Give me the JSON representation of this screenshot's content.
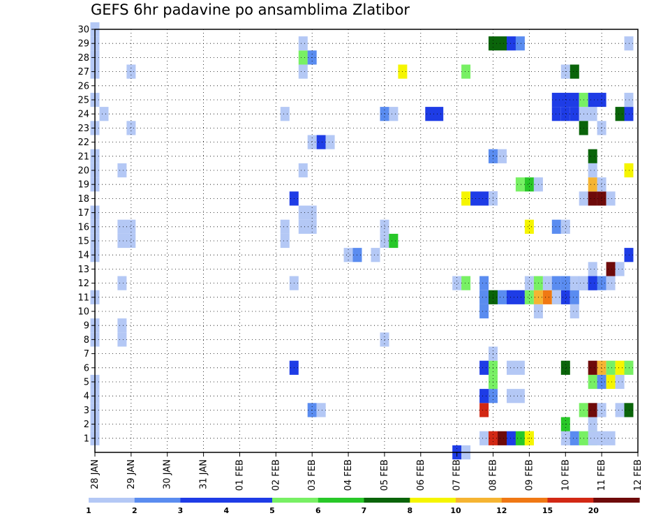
{
  "chart_data": {
    "type": "heatmap",
    "title": "GEFS 6hr padavine po ansamblima Zlatibor",
    "x_tick_labels": [
      "28 JAN",
      "29 JAN",
      "30 JAN",
      "31 JAN",
      "01 FEB",
      "02 FEB",
      "03 FEB",
      "04 FEB",
      "05 FEB",
      "06 FEB",
      "07 FEB",
      "08 FEB",
      "09 FEB",
      "10 FEB",
      "11 FEB",
      "12 FEB"
    ],
    "y_tick_labels": [
      "1",
      "2",
      "3",
      "4",
      "5",
      "6",
      "7",
      "8",
      "9",
      "10",
      "11",
      "12",
      "13",
      "14",
      "15",
      "16",
      "17",
      "18",
      "19",
      "20",
      "21",
      "22",
      "23",
      "24",
      "25",
      "26",
      "27",
      "28",
      "29",
      "30"
    ],
    "x_range_days": [
      0,
      15
    ],
    "y_range": [
      0,
      30
    ],
    "grid": true,
    "colorbar": {
      "tick_labels": [
        "1",
        "2",
        "3",
        "4",
        "5",
        "6",
        "7",
        "8",
        "10",
        "12",
        "15",
        "20"
      ],
      "colors": [
        "#b4c8f5",
        "#5a8cf0",
        "#1e3ce6",
        "#1e3ce6",
        "#78f064",
        "#28c828",
        "#0a640a",
        "#f5f500",
        "#f5b432",
        "#f07814",
        "#d22814",
        "#6e0a0a"
      ]
    },
    "cells": [
      [
        0,
        1,
        1,
        1
      ],
      [
        0,
        2,
        1,
        1
      ],
      [
        0,
        3,
        1,
        1
      ],
      [
        0,
        4,
        1,
        1
      ],
      [
        0,
        5,
        1,
        1
      ],
      [
        0,
        8,
        1,
        1
      ],
      [
        0,
        9,
        1,
        1
      ],
      [
        0,
        11,
        1,
        1
      ],
      [
        0,
        14,
        1,
        1
      ],
      [
        0,
        15,
        1,
        1
      ],
      [
        0,
        16,
        1,
        1
      ],
      [
        0,
        17,
        1,
        1
      ],
      [
        0,
        19,
        1,
        1
      ],
      [
        0,
        20,
        1,
        1
      ],
      [
        0,
        21,
        1,
        1
      ],
      [
        0,
        23,
        1,
        1
      ],
      [
        0,
        25,
        1,
        1
      ],
      [
        0,
        27,
        1,
        1
      ],
      [
        0,
        28,
        1,
        1
      ],
      [
        0,
        29,
        1,
        1
      ],
      [
        0,
        30,
        1,
        1
      ],
      [
        0.25,
        24,
        1,
        1
      ],
      [
        0.75,
        8,
        1,
        1
      ],
      [
        0.75,
        9,
        1,
        1
      ],
      [
        0.75,
        12,
        1,
        1
      ],
      [
        0.75,
        15,
        2,
        1
      ],
      [
        0.75,
        16,
        2,
        1
      ],
      [
        0.75,
        20,
        1,
        1
      ],
      [
        1,
        23,
        1,
        1
      ],
      [
        1,
        27,
        1,
        1
      ],
      [
        5.25,
        15,
        1,
        1
      ],
      [
        5.25,
        16,
        1,
        1
      ],
      [
        5.25,
        24,
        1,
        1
      ],
      [
        5.5,
        6,
        1,
        3
      ],
      [
        5.5,
        12,
        1,
        1
      ],
      [
        5.5,
        18,
        1,
        3
      ],
      [
        5.75,
        16,
        2,
        1
      ],
      [
        5.75,
        17,
        2,
        1
      ],
      [
        5.75,
        20,
        1,
        1
      ],
      [
        5.75,
        27,
        1,
        1
      ],
      [
        5.75,
        28,
        1,
        5
      ],
      [
        5.75,
        29,
        1,
        1
      ],
      [
        6.0,
        28,
        1,
        2
      ],
      [
        6.0,
        22,
        1,
        1
      ],
      [
        6.25,
        22,
        1,
        3
      ],
      [
        6.5,
        22,
        1,
        1
      ],
      [
        6.0,
        3,
        1,
        2
      ],
      [
        6.25,
        3,
        1,
        1
      ],
      [
        7.0,
        14,
        1,
        1
      ],
      [
        7.25,
        14,
        1,
        2
      ],
      [
        7.75,
        14,
        1,
        1
      ],
      [
        8.0,
        8,
        1,
        1
      ],
      [
        8.0,
        15,
        1,
        1
      ],
      [
        8.0,
        16,
        1,
        1
      ],
      [
        8.25,
        15,
        1,
        6
      ],
      [
        8.0,
        24,
        1,
        2
      ],
      [
        8.25,
        24,
        1,
        1
      ],
      [
        8.5,
        27,
        1,
        8
      ],
      [
        9.25,
        24,
        2,
        3
      ],
      [
        10.0,
        0,
        1,
        3
      ],
      [
        10.25,
        0,
        1,
        1
      ],
      [
        10.0,
        12,
        1,
        1
      ],
      [
        10.25,
        12,
        1,
        5
      ],
      [
        10.25,
        27,
        1,
        5
      ],
      [
        10.25,
        18,
        1,
        8
      ],
      [
        10.5,
        18,
        3,
        3
      ],
      [
        11.0,
        18,
        1,
        1
      ],
      [
        10.75,
        1,
        1,
        1
      ],
      [
        11.0,
        1,
        1,
        11
      ],
      [
        11.25,
        1,
        1,
        12
      ],
      [
        11.5,
        1,
        1,
        3
      ],
      [
        11.75,
        1,
        1,
        6
      ],
      [
        12.0,
        1,
        1,
        8
      ],
      [
        10.75,
        3,
        1,
        11
      ],
      [
        11.0,
        4,
        1,
        2
      ],
      [
        11.0,
        5,
        1,
        5
      ],
      [
        11.0,
        6,
        1,
        5
      ],
      [
        11.0,
        7,
        1,
        1
      ],
      [
        10.75,
        4,
        1,
        3
      ],
      [
        10.75,
        6,
        1,
        3
      ],
      [
        10.75,
        11,
        1,
        2
      ],
      [
        10.75,
        10,
        1,
        2
      ],
      [
        10.75,
        12,
        1,
        2
      ],
      [
        11.0,
        11,
        1,
        7
      ],
      [
        11.25,
        11,
        1,
        2
      ],
      [
        11.5,
        11,
        2,
        3
      ],
      [
        11.5,
        4,
        2,
        1
      ],
      [
        11.5,
        6,
        2,
        1
      ],
      [
        12.0,
        11,
        1,
        5
      ],
      [
        12.25,
        11,
        1,
        9
      ],
      [
        12.5,
        11,
        1,
        10
      ],
      [
        12.75,
        11,
        1,
        8
      ],
      [
        13.0,
        11,
        1,
        3
      ],
      [
        13.25,
        11,
        1,
        2
      ],
      [
        12.0,
        12,
        1,
        1
      ],
      [
        12.25,
        12,
        1,
        5
      ],
      [
        12.5,
        12,
        1,
        1
      ],
      [
        12.75,
        12,
        1,
        2
      ],
      [
        13.0,
        12,
        1,
        2
      ],
      [
        13.25,
        12,
        1,
        1
      ],
      [
        13.5,
        12,
        1,
        2
      ],
      [
        13.75,
        12,
        1,
        3
      ],
      [
        14.0,
        12,
        1,
        2
      ],
      [
        14.25,
        12,
        1,
        1
      ],
      [
        11.0,
        29,
        1,
        7
      ],
      [
        11.25,
        29,
        1,
        7
      ],
      [
        11.5,
        29,
        1,
        3
      ],
      [
        11.75,
        29,
        1,
        2
      ],
      [
        11.0,
        21,
        1,
        2
      ],
      [
        11.25,
        21,
        1,
        1
      ],
      [
        11.75,
        19,
        1,
        5
      ],
      [
        12.0,
        19,
        1,
        6
      ],
      [
        12.25,
        19,
        1,
        1
      ],
      [
        12.0,
        16,
        1,
        8
      ],
      [
        12.25,
        10,
        1,
        1
      ],
      [
        12.0,
        1,
        1,
        8
      ],
      [
        12.75,
        24,
        1,
        3
      ],
      [
        13.0,
        24,
        1,
        3
      ],
      [
        13.25,
        24,
        1,
        3
      ],
      [
        12.75,
        25,
        3,
        3
      ],
      [
        12.75,
        16,
        1,
        2
      ],
      [
        13.0,
        16,
        1,
        1
      ],
      [
        12.75,
        11,
        1,
        1
      ],
      [
        13.0,
        27,
        1,
        1
      ],
      [
        13.25,
        27,
        1,
        7
      ],
      [
        13.0,
        12,
        1,
        2
      ],
      [
        13.25,
        10,
        1,
        1
      ],
      [
        13.0,
        1,
        1,
        1
      ],
      [
        13.25,
        1,
        1,
        2
      ],
      [
        13.5,
        1,
        2,
        5
      ],
      [
        13.0,
        2,
        1,
        6
      ],
      [
        13.0,
        6,
        1,
        7
      ],
      [
        13.5,
        24,
        2,
        1
      ],
      [
        13.5,
        25,
        1,
        5
      ],
      [
        13.75,
        25,
        2,
        3
      ],
      [
        13.5,
        23,
        1,
        7
      ],
      [
        13.5,
        3,
        1,
        5
      ],
      [
        13.75,
        3,
        1,
        15
      ],
      [
        14.0,
        3,
        1,
        1
      ],
      [
        13.75,
        2,
        1,
        1
      ],
      [
        13.75,
        1,
        3,
        1
      ],
      [
        13.75,
        5,
        1,
        5
      ],
      [
        14.0,
        5,
        1,
        2
      ],
      [
        14.25,
        5,
        1,
        8
      ],
      [
        14.5,
        5,
        1,
        1
      ],
      [
        13.75,
        6,
        1,
        20
      ],
      [
        14.0,
        6,
        1,
        9
      ],
      [
        14.25,
        6,
        1,
        5
      ],
      [
        14.5,
        6,
        1,
        8
      ],
      [
        14.75,
        6,
        1,
        5
      ],
      [
        13.5,
        18,
        1,
        1
      ],
      [
        13.75,
        18,
        1,
        20
      ],
      [
        14.0,
        18,
        1,
        15
      ],
      [
        14.25,
        18,
        1,
        1
      ],
      [
        13.75,
        19,
        1,
        9
      ],
      [
        14.0,
        19,
        1,
        1
      ],
      [
        13.75,
        21,
        1,
        7
      ],
      [
        13.75,
        20,
        1,
        1
      ],
      [
        14.0,
        23,
        1,
        1
      ],
      [
        13.5,
        12,
        1,
        1
      ],
      [
        13.75,
        12,
        1,
        3
      ],
      [
        13.75,
        13,
        1,
        1
      ],
      [
        14.25,
        13,
        1,
        12
      ],
      [
        14.5,
        13,
        1,
        1
      ],
      [
        14.75,
        14,
        1,
        3
      ],
      [
        14.75,
        20,
        1,
        8
      ],
      [
        14.75,
        24,
        1,
        3
      ],
      [
        14.5,
        24,
        1,
        7
      ],
      [
        14.75,
        25,
        1,
        1
      ],
      [
        14.75,
        29,
        1,
        1
      ],
      [
        14.5,
        3,
        1,
        1
      ],
      [
        14.75,
        3,
        1,
        7
      ]
    ]
  }
}
